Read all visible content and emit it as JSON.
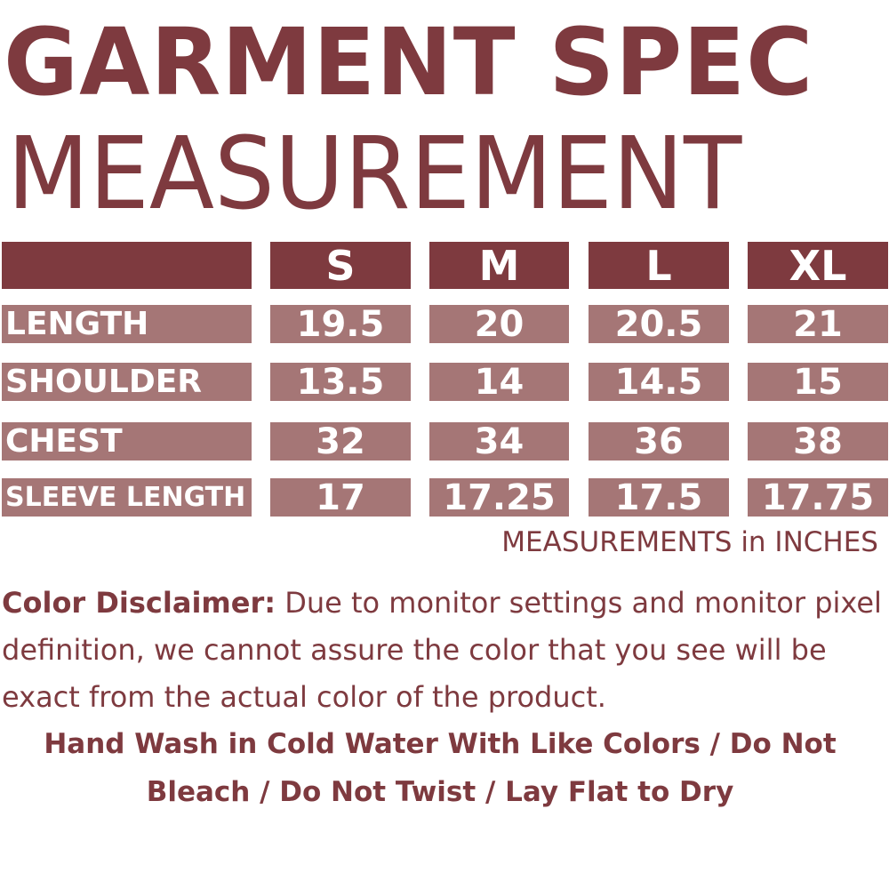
{
  "title_line1": "GARMENT SPEC",
  "title_line2": "MEASUREMENT",
  "colors": {
    "header": "#7e3a3f",
    "cell": "#a57676",
    "text": "#7e3a3f"
  },
  "table": {
    "columns": [
      "S",
      "M",
      "L",
      "XL"
    ],
    "rows": [
      {
        "label": "LENGTH",
        "values": [
          "19.5",
          "20",
          "20.5",
          "21"
        ]
      },
      {
        "label": "SHOULDER",
        "values": [
          "13.5",
          "14",
          "14.5",
          "15"
        ]
      },
      {
        "label": "CHEST",
        "values": [
          "32",
          "34",
          "36",
          "38"
        ]
      },
      {
        "label": "SLEEVE LENGTH",
        "values": [
          "17",
          "17.25",
          "17.5",
          "17.75"
        ]
      }
    ]
  },
  "units_note": "MEASUREMENTS in INCHES",
  "disclaimer": {
    "label": "Color Disclaimer:",
    "text": " Due to monitor settings and monitor pixel definition, we cannot assure the color that you see will be exact from the actual color of the product."
  },
  "care_instructions": "Hand Wash in Cold Water With Like Colors / Do Not Bleach / Do Not Twist / Lay Flat to Dry"
}
